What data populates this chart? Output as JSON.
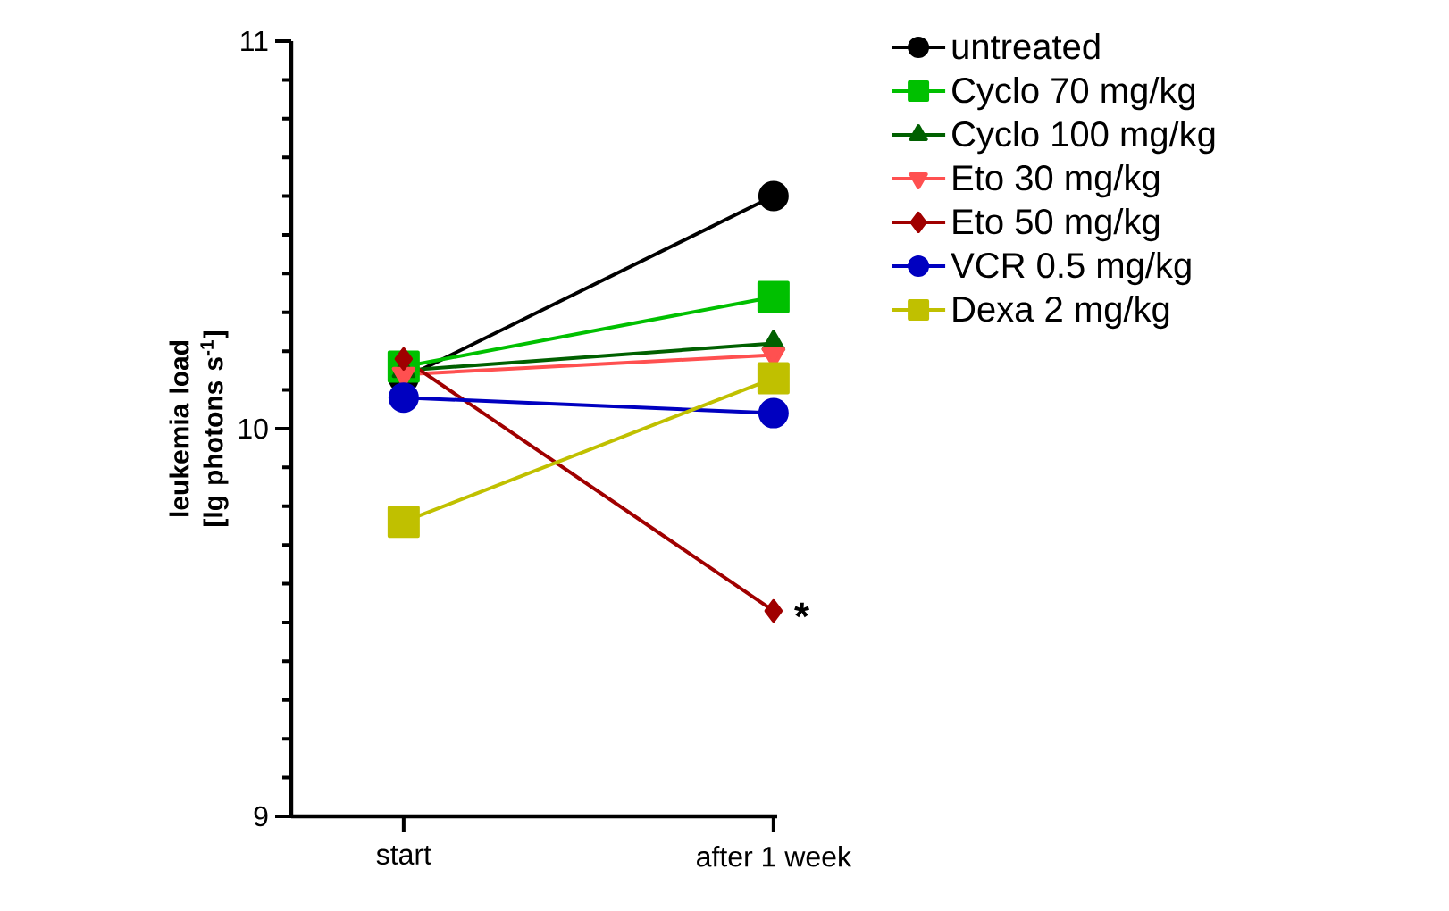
{
  "chart_data": {
    "type": "line",
    "ylabel": "leukemia  load [lg photons s$^{-1}$]",
    "categories": [
      "start",
      "after 1 week"
    ],
    "ylim": [
      9,
      11
    ],
    "yticks": [
      9,
      {
        "value": 9.1,
        "label": null
      },
      {
        "value": 9.2,
        "label": null
      },
      {
        "value": 9.3,
        "label": null
      },
      {
        "value": 9.4,
        "label": null
      },
      {
        "value": 9.5,
        "label": null
      },
      {
        "value": 9.6,
        "label": null
      },
      {
        "value": 9.7,
        "label": null
      },
      {
        "value": 9.8,
        "label": null
      },
      {
        "value": 9.9,
        "label": null
      },
      10,
      {
        "value": 10.1,
        "label": null
      },
      {
        "value": 10.2,
        "label": null
      },
      {
        "value": 10.3,
        "label": null
      },
      {
        "value": 10.4,
        "label": null
      },
      {
        "value": 10.5,
        "label": null
      },
      {
        "value": 10.6,
        "label": null
      },
      {
        "value": 10.7,
        "label": null
      },
      {
        "value": 10.8,
        "label": null
      },
      {
        "value": 10.9,
        "label": null
      },
      11
    ],
    "series": [
      {
        "name": "untreated",
        "color": "#000000",
        "marker": "circle",
        "values": [
          10.13,
          10.6
        ]
      },
      {
        "name": "Cyclo 70 mg/kg",
        "color": "#00c000",
        "marker": "square",
        "values": [
          10.16,
          10.34
        ]
      },
      {
        "name": "Cyclo 100 mg/kg",
        "color": "#006000",
        "marker": "triangle",
        "values": [
          10.15,
          10.22
        ]
      },
      {
        "name": "Eto 30 mg/kg",
        "color": "#ff5050",
        "marker": "triangle-down",
        "values": [
          10.14,
          10.19
        ]
      },
      {
        "name": "Eto 50 mg/kg",
        "color": "#a00000",
        "marker": "diamond",
        "values": [
          10.18,
          9.53
        ]
      },
      {
        "name": "VCR 0.5 mg/kg",
        "color": "#0000c0",
        "marker": "circle",
        "values": [
          10.08,
          10.04
        ]
      },
      {
        "name": "Dexa 2 mg/kg",
        "color": "#c0c000",
        "marker": "square",
        "values": [
          9.76,
          10.13
        ]
      }
    ],
    "annotations": [
      {
        "text": "*",
        "x": "after 1 week",
        "y": 9.53
      }
    ],
    "legend": "right",
    "grid": false
  }
}
